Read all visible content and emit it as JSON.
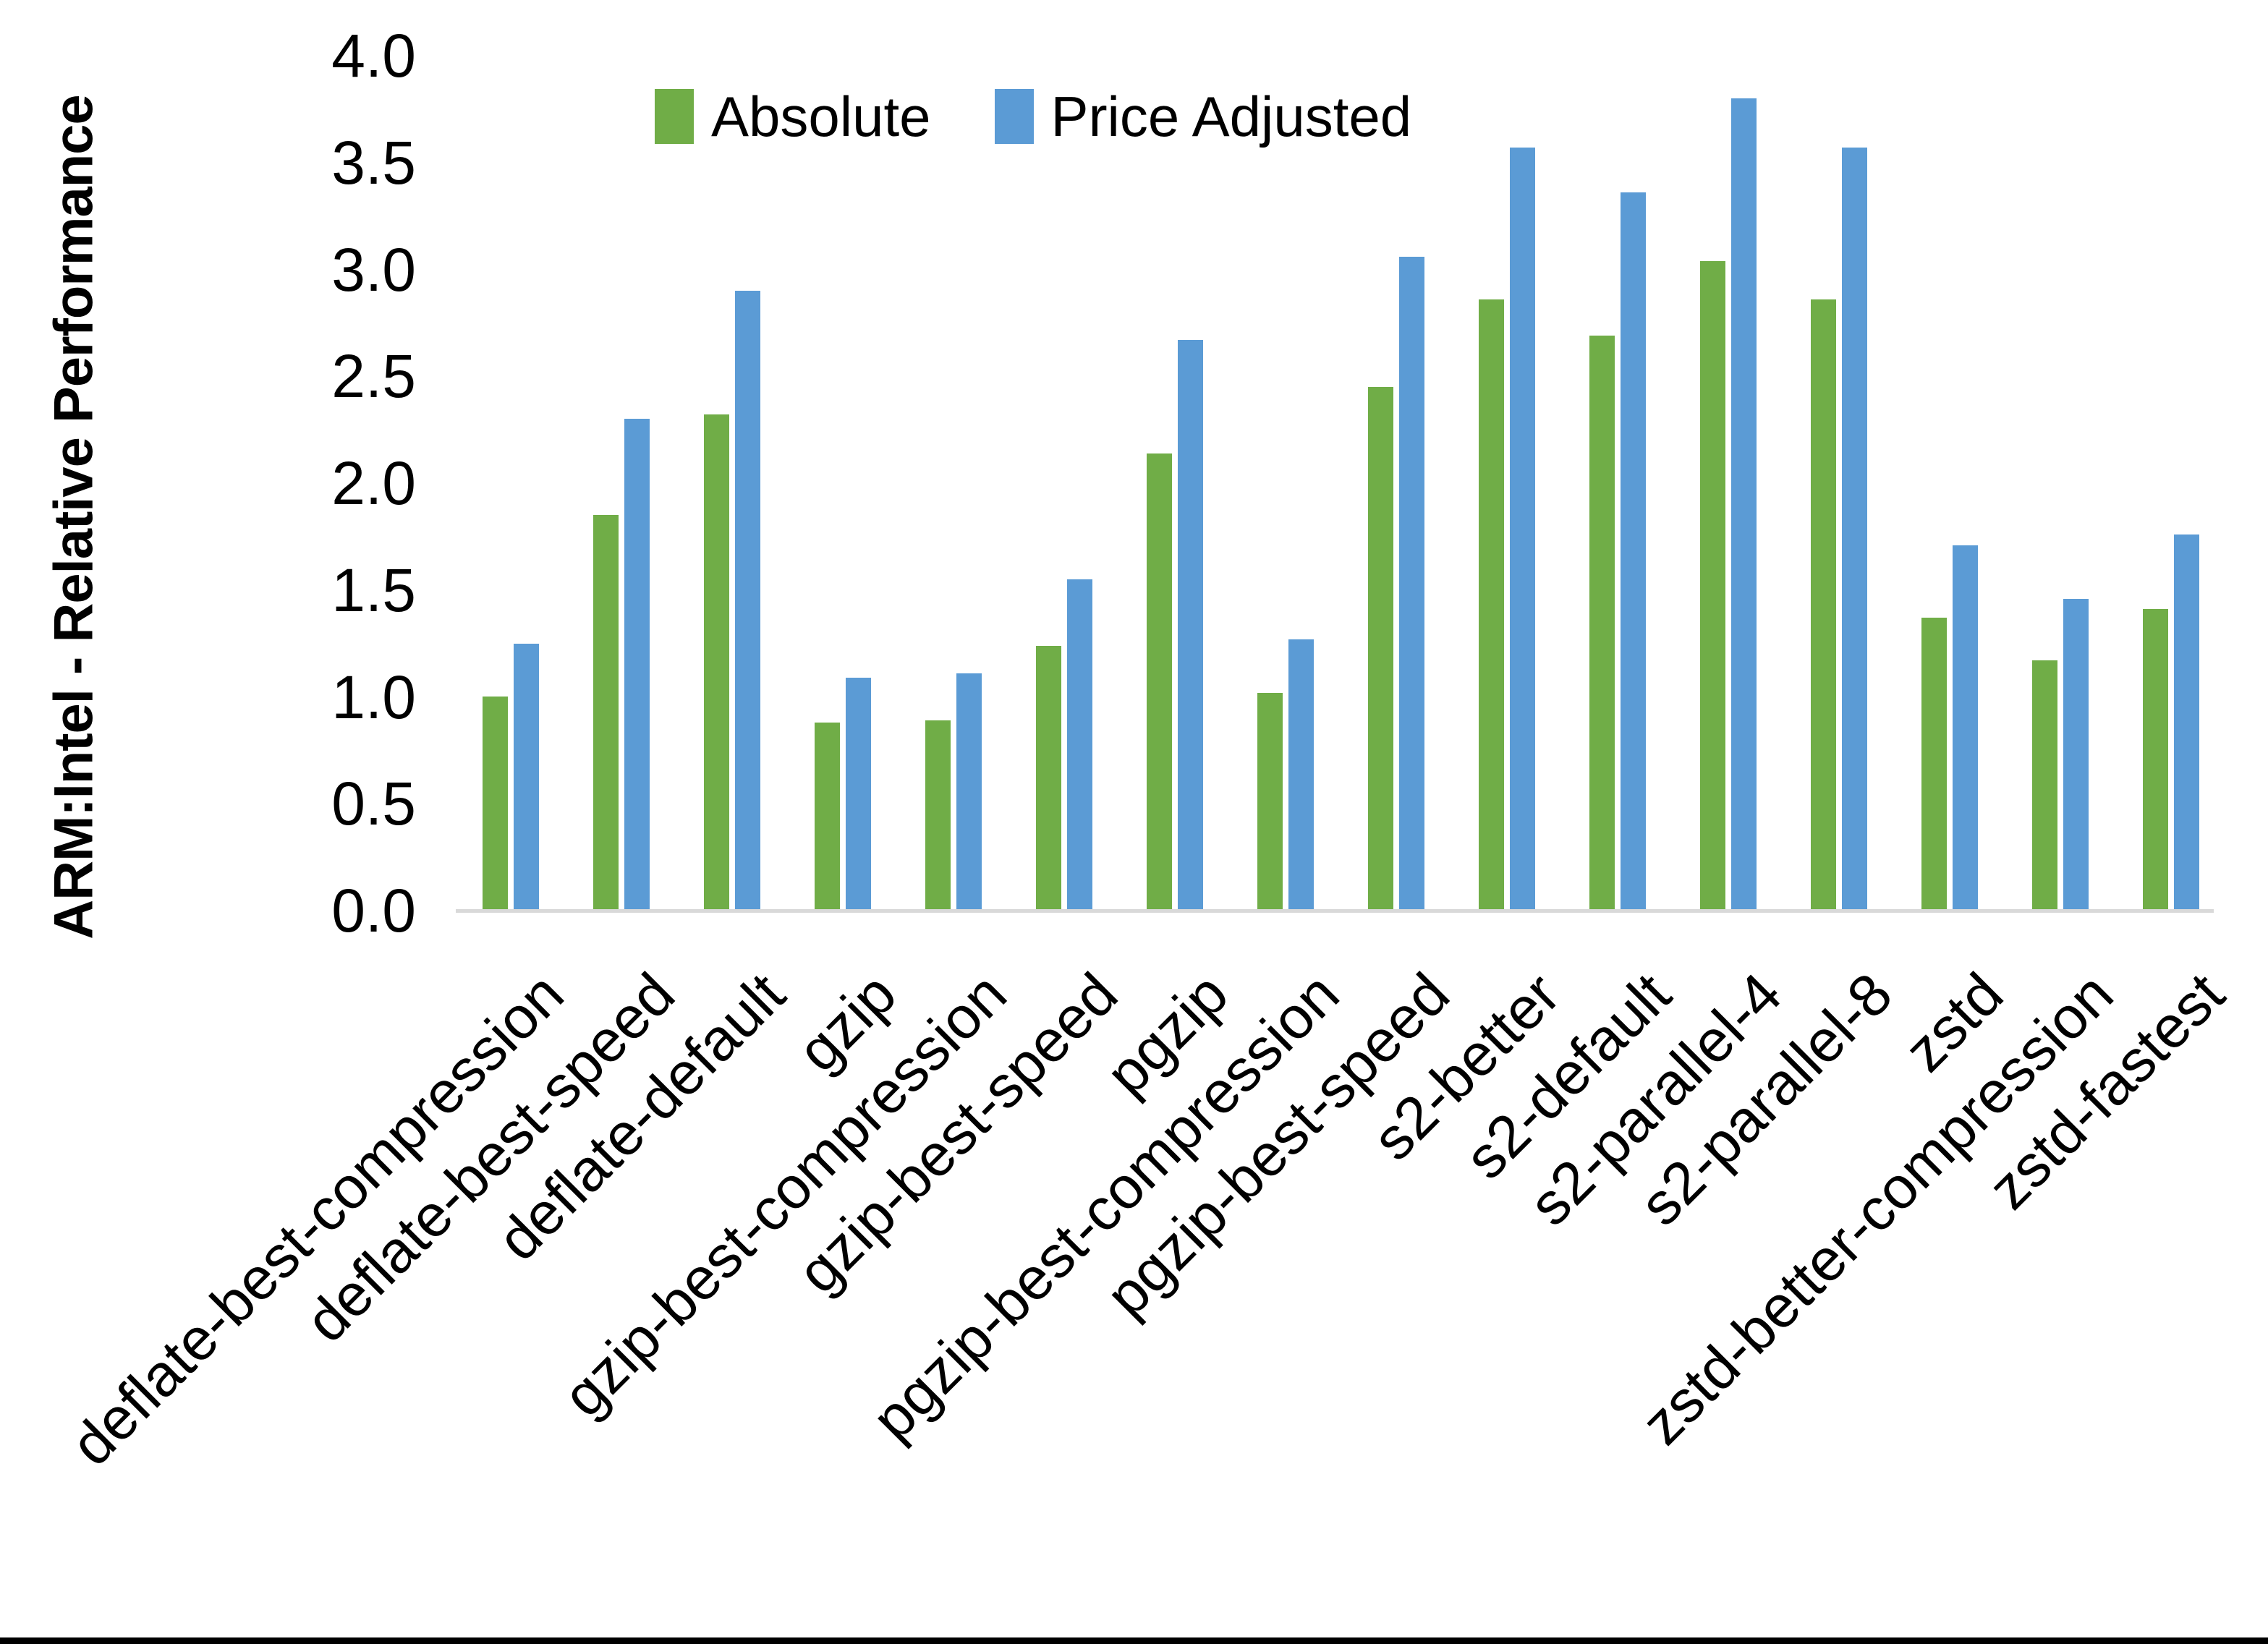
{
  "y_axis": {
    "title": "ARM:Intel - Relative Performance",
    "tick_labels": [
      "0.0",
      "0.5",
      "1.0",
      "1.5",
      "2.0",
      "2.5",
      "3.0",
      "3.5",
      "4.0"
    ]
  },
  "legend": {
    "items": [
      {
        "label": "Absolute",
        "color": "#70AD47"
      },
      {
        "label": "Price Adjusted",
        "color": "#5B9BD5"
      }
    ]
  },
  "colors": {
    "absolute_green": "#70AD47",
    "price_adjusted_blue": "#5B9BD5",
    "axis_line_gray": "#d9d9d9",
    "text_black": "#000000",
    "bottom_border_black": "#000000"
  },
  "chart_data": {
    "type": "bar",
    "title": "",
    "xlabel": "",
    "ylabel": "ARM:Intel - Relative Performance",
    "ylim": [
      0.0,
      4.0
    ],
    "ytick_step": 0.5,
    "grid": false,
    "legend_position": "top",
    "categories": [
      "deflate-best-compression",
      "deflate-best-speed",
      "deflate-default",
      "gzip",
      "gzip-best-compression",
      "gzip-best-speed",
      "pgzip",
      "pgzip-best-compression",
      "pgzip-best-speed",
      "s2-better",
      "s2-default",
      "s2-parallel-4",
      "s2-parallel-8",
      "zstd",
      "zstd-better-compression",
      "zstd-fastest"
    ],
    "series": [
      {
        "name": "Absolute",
        "color": "#70AD47",
        "values": [
          1.0,
          1.85,
          2.32,
          0.88,
          0.89,
          1.24,
          2.14,
          1.02,
          2.45,
          2.86,
          2.69,
          3.04,
          2.86,
          1.37,
          1.17,
          1.41
        ]
      },
      {
        "name": "Price Adjusted",
        "color": "#5B9BD5",
        "values": [
          1.25,
          2.3,
          2.9,
          1.09,
          1.11,
          1.55,
          2.67,
          1.27,
          3.06,
          3.57,
          3.36,
          3.8,
          3.57,
          1.71,
          1.46,
          1.76
        ]
      }
    ]
  }
}
